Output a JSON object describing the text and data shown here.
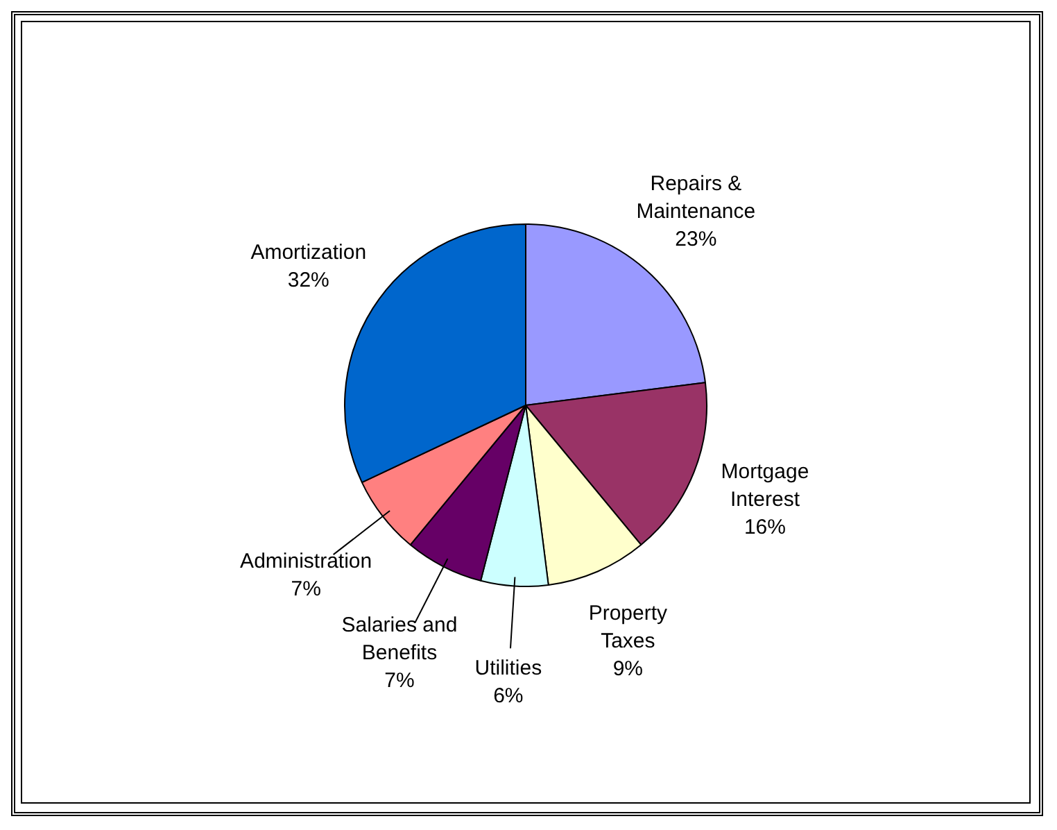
{
  "chart_data": {
    "type": "pie",
    "categories": [
      "Repairs & Maintenance",
      "Mortgage Interest",
      "Property Taxes",
      "Utilities",
      "Salaries and Benefits",
      "Administration",
      "Amortization"
    ],
    "values": [
      23,
      16,
      9,
      6,
      7,
      7,
      32
    ],
    "colors": [
      "#9999ff",
      "#993366",
      "#ffffcc",
      "#ccffff",
      "#660066",
      "#ff8080",
      "#0066cc"
    ],
    "value_labels": [
      "23%",
      "16%",
      "9%",
      "6%",
      "7%",
      "7%",
      "32%"
    ],
    "legend": false
  }
}
